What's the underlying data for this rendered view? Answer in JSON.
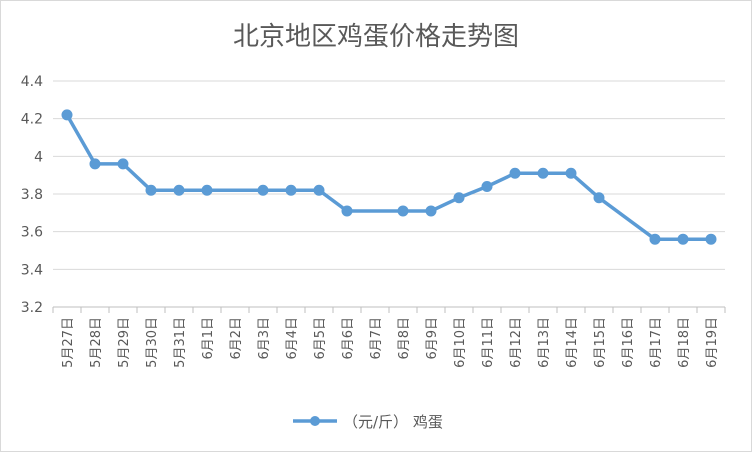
{
  "chart_data": {
    "type": "line",
    "title": "北京地区鸡蛋价格走势图",
    "xlabel": "",
    "ylabel": "",
    "ylim": [
      3.2,
      4.4
    ],
    "yticks": [
      "3.2",
      "3.4",
      "3.6",
      "3.8",
      "4",
      "4.2",
      "4.4"
    ],
    "grid": true,
    "legend_position": "bottom",
    "categories": [
      "5月27日",
      "5月28日",
      "5月29日",
      "5月30日",
      "5月31日",
      "6月1日",
      "6月2日",
      "6月3日",
      "6月4日",
      "6月5日",
      "6月6日",
      "6月7日",
      "6月8日",
      "6月9日",
      "6月10日",
      "6月11日",
      "6月12日",
      "6月13日",
      "6月14日",
      "6月15日",
      "6月16日",
      "6月17日",
      "6月18日",
      "6月19日"
    ],
    "series": [
      {
        "name": "（元/斤） 鸡蛋",
        "color": "#5b9bd5",
        "values": [
          4.22,
          3.96,
          3.96,
          3.82,
          3.82,
          3.82,
          null,
          3.82,
          3.82,
          3.82,
          3.71,
          null,
          3.71,
          3.71,
          3.78,
          3.84,
          3.91,
          3.91,
          3.91,
          3.78,
          null,
          3.56,
          3.56,
          3.56
        ]
      }
    ]
  }
}
